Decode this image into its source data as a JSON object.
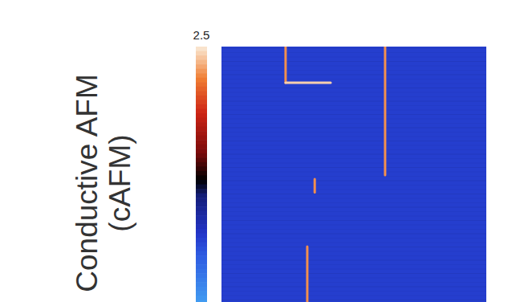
{
  "chart_data": {
    "type": "heatmap",
    "ylabel": [
      "Conductive AFM",
      "(cAFM)"
    ],
    "xlim": [
      0,
      1
    ],
    "ylim": [
      0,
      1
    ],
    "tick_labels": false,
    "background": -1.1,
    "features": [
      {
        "x": [
          0.242,
          0.242
        ],
        "y": [
          0,
          0.136
        ],
        "value": 2.0
      },
      {
        "x": [
          0.242,
          0.412
        ],
        "y": [
          0.136,
          0.136
        ],
        "value": 2.35
      },
      {
        "x": [
          0.618,
          0.618
        ],
        "y": [
          0,
          0.485
        ],
        "value": 2.0
      },
      {
        "x": [
          0.352,
          0.352
        ],
        "y": [
          0.5,
          0.55
        ],
        "value": 2.0
      },
      {
        "x": [
          0.324,
          0.324
        ],
        "y": [
          0.755,
          1.0
        ],
        "value": 2.0
      }
    ],
    "colorbar": {
      "range": [
        -2.5,
        2.5
      ],
      "ticks": [
        2.5
      ]
    }
  }
}
